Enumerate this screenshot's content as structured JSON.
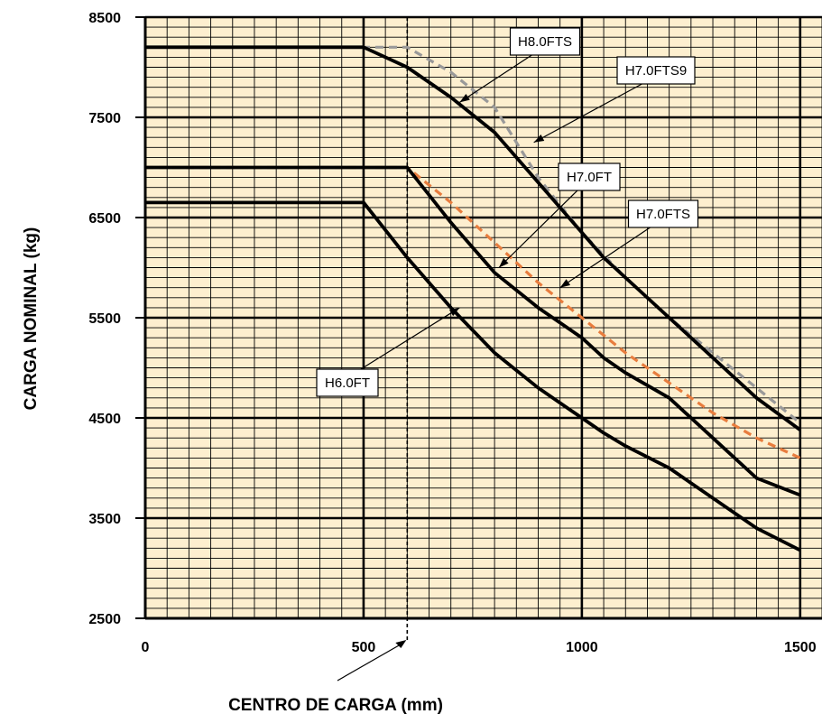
{
  "chart_data": {
    "type": "line",
    "xlabel": "CENTRO DE CARGA (mm)",
    "ylabel": "CARGA NOMINAL (kg)",
    "xlim": [
      0,
      1550
    ],
    "ylim": [
      2500,
      8500
    ],
    "x_ticks": [
      0,
      500,
      1000,
      1500
    ],
    "y_ticks": [
      2500,
      3500,
      4500,
      5500,
      6500,
      7500,
      8500
    ],
    "grid": true,
    "background_color": "#fdefcf",
    "reference_line": {
      "x": 600,
      "style": "dashed"
    },
    "series": [
      {
        "name": "H8.0FTS",
        "color": "#000000",
        "style": "solid",
        "x": [
          0,
          500,
          600,
          700,
          800,
          900,
          1000,
          1050,
          1100,
          1200,
          1300,
          1400,
          1500
        ],
        "y": [
          8200,
          8200,
          8000,
          7700,
          7350,
          6850,
          6350,
          6100,
          5900,
          5500,
          5100,
          4700,
          4380
        ]
      },
      {
        "name": "H7.0FTS9",
        "color": "#999999",
        "style": "dashed",
        "x": [
          0,
          600,
          700,
          800,
          900,
          1000,
          1100,
          1200,
          1300,
          1400,
          1500
        ],
        "y": [
          8200,
          8200,
          7950,
          7600,
          6900,
          6350,
          5900,
          5500,
          5150,
          4800,
          4450
        ]
      },
      {
        "name": "H7.0FT",
        "color": "#000000",
        "style": "solid",
        "x": [
          0,
          600,
          700,
          800,
          900,
          1000,
          1050,
          1100,
          1200,
          1300,
          1400,
          1500
        ],
        "y": [
          7000,
          7000,
          6450,
          5950,
          5600,
          5300,
          5100,
          4950,
          4700,
          4300,
          3900,
          3730
        ]
      },
      {
        "name": "H7.0FTS",
        "color": "#e87d3e",
        "style": "dashed",
        "x": [
          0,
          600,
          700,
          800,
          900,
          1000,
          1100,
          1200,
          1300,
          1400,
          1500
        ],
        "y": [
          7000,
          7000,
          6650,
          6250,
          5850,
          5500,
          5150,
          4850,
          4550,
          4300,
          4100
        ]
      },
      {
        "name": "H6.0FT",
        "color": "#000000",
        "style": "solid",
        "x": [
          0,
          500,
          600,
          700,
          800,
          900,
          1000,
          1050,
          1100,
          1200,
          1300,
          1400,
          1500
        ],
        "y": [
          6650,
          6650,
          6100,
          5600,
          5150,
          4800,
          4500,
          4350,
          4220,
          4000,
          3700,
          3400,
          3180
        ]
      }
    ],
    "callouts": [
      {
        "label": "H8.0FTS",
        "target": [
          720,
          7650
        ]
      },
      {
        "label": "H7.0FTS9",
        "target": [
          890,
          7250
        ]
      },
      {
        "label": "H7.0FT",
        "target": [
          810,
          6000
        ]
      },
      {
        "label": "H7.0FTS",
        "target": [
          950,
          5800
        ]
      },
      {
        "label": "H6.0FT",
        "target": [
          720,
          5600
        ]
      }
    ]
  }
}
